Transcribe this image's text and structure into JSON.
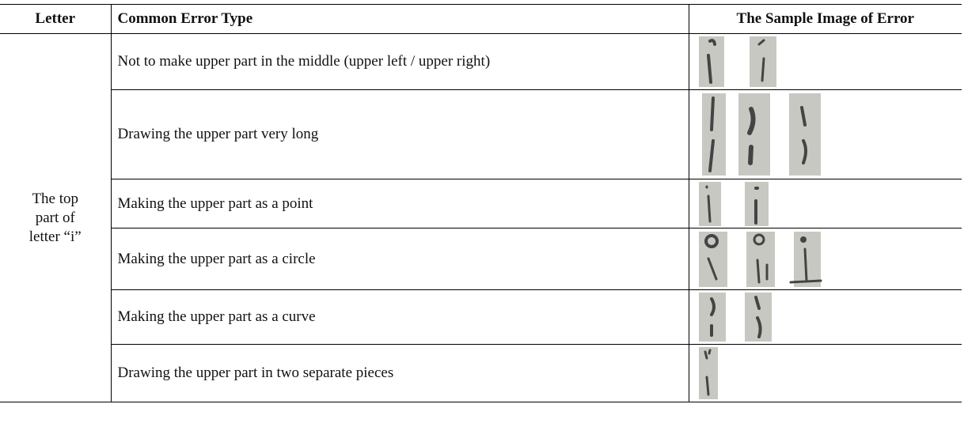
{
  "table": {
    "header": [
      "Letter",
      "Common Error Type",
      "The Sample Image of Error"
    ],
    "letter": "The top part of letter “i”",
    "errors": [
      "Not to make upper part in the middle (upper left / upper right)",
      "Drawing the upper part very long",
      "Making the upper part as a point",
      "Making the upper part as a circle",
      "Making the upper part as a curve",
      "Drawing the upper part in two separate pieces"
    ]
  }
}
